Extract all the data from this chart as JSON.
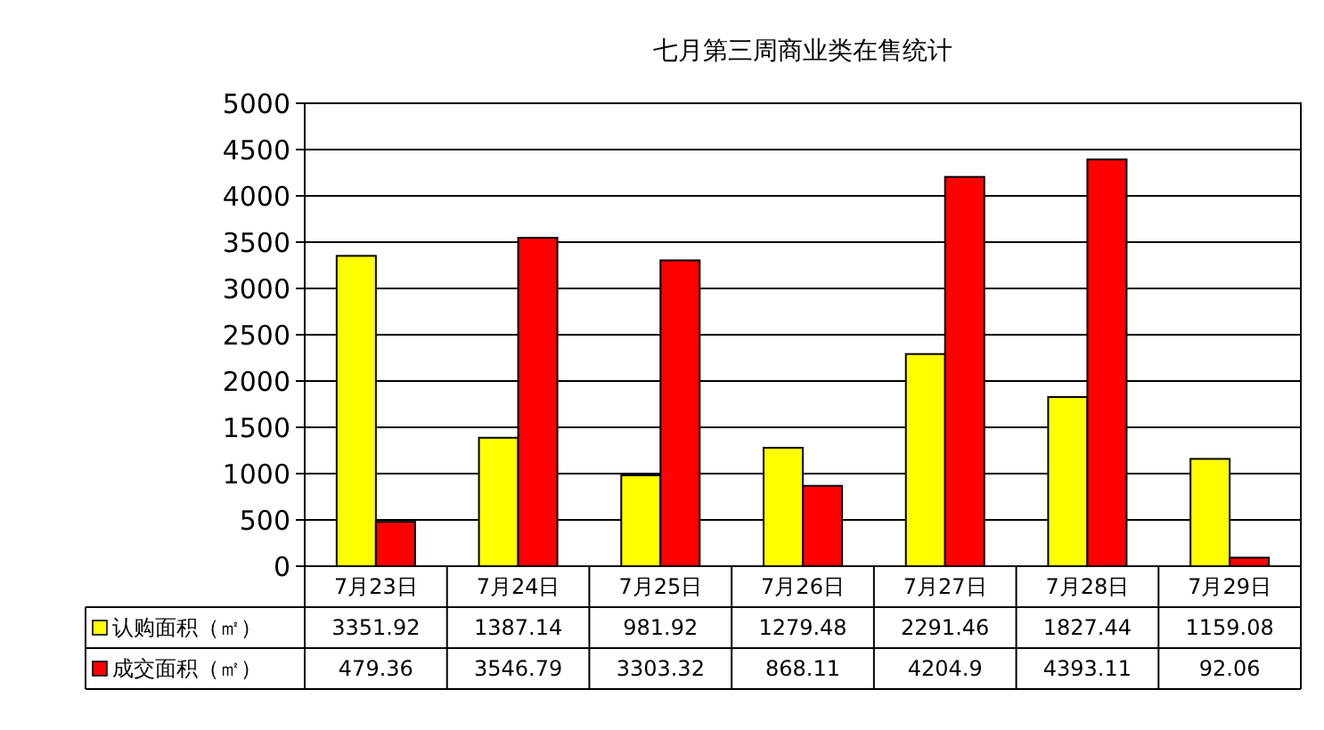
{
  "chart_data": {
    "type": "bar",
    "title": "七月第三周商业类在售统计",
    "categories": [
      "7月23日",
      "7月24日",
      "7月25日",
      "7月26日",
      "7月27日",
      "7月28日",
      "7月29日"
    ],
    "series": [
      {
        "name": "认购面积（㎡）",
        "color": "#ffff00",
        "values": [
          3351.92,
          1387.14,
          981.92,
          1279.48,
          2291.46,
          1827.44,
          1159.08
        ]
      },
      {
        "name": "成交面积（㎡）",
        "color": "#ff0000",
        "values": [
          479.36,
          3546.79,
          3303.32,
          868.11,
          4204.9,
          4393.11,
          92.06
        ]
      }
    ],
    "ylim": [
      0,
      5000
    ],
    "yticks": [
      0,
      500,
      1000,
      1500,
      2000,
      2500,
      3000,
      3500,
      4000,
      4500,
      5000
    ],
    "grid": "y",
    "legend": "bottom",
    "data_labels": true
  }
}
